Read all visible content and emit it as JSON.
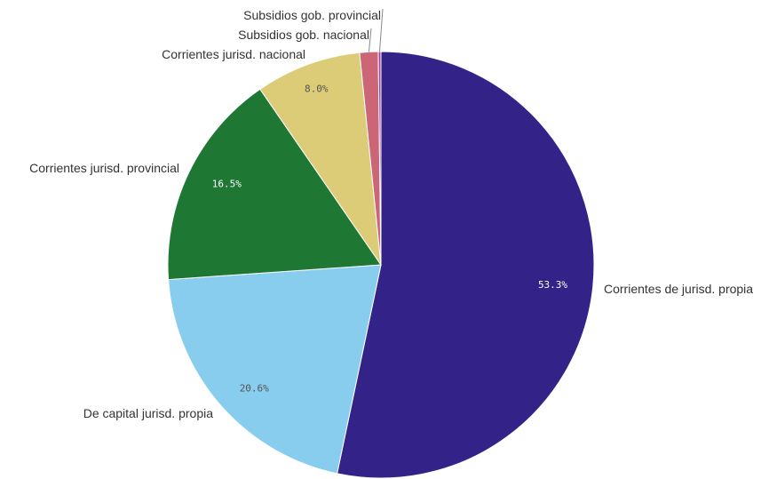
{
  "chart_data": {
    "type": "pie",
    "title": "",
    "slices": [
      {
        "label": "Corrientes de jurisd. propia",
        "value": 53.3,
        "value_label": "53.3%",
        "color": "#332288",
        "pct_color": "#ffffff"
      },
      {
        "label": "De capital jurisd. propia",
        "value": 20.6,
        "value_label": "20.6%",
        "color": "#88ccee",
        "pct_color": "#555555"
      },
      {
        "label": "Corrientes jurisd. provincial",
        "value": 16.5,
        "value_label": "16.5%",
        "color": "#1e7733",
        "pct_color": "#ffffff"
      },
      {
        "label": "Corrientes jurisd. nacional",
        "value": 8.0,
        "value_label": "8.0%",
        "color": "#ddcc77",
        "pct_color": "#555555"
      },
      {
        "label": "Subsidios gob. nacional",
        "value": 1.4,
        "value_label": "",
        "color": "#cc6677",
        "pct_color": "#555555"
      },
      {
        "label": "Subsidios gob. provincial",
        "value": 0.2,
        "value_label": "",
        "color": "#aa4499",
        "pct_color": "#555555"
      }
    ]
  }
}
